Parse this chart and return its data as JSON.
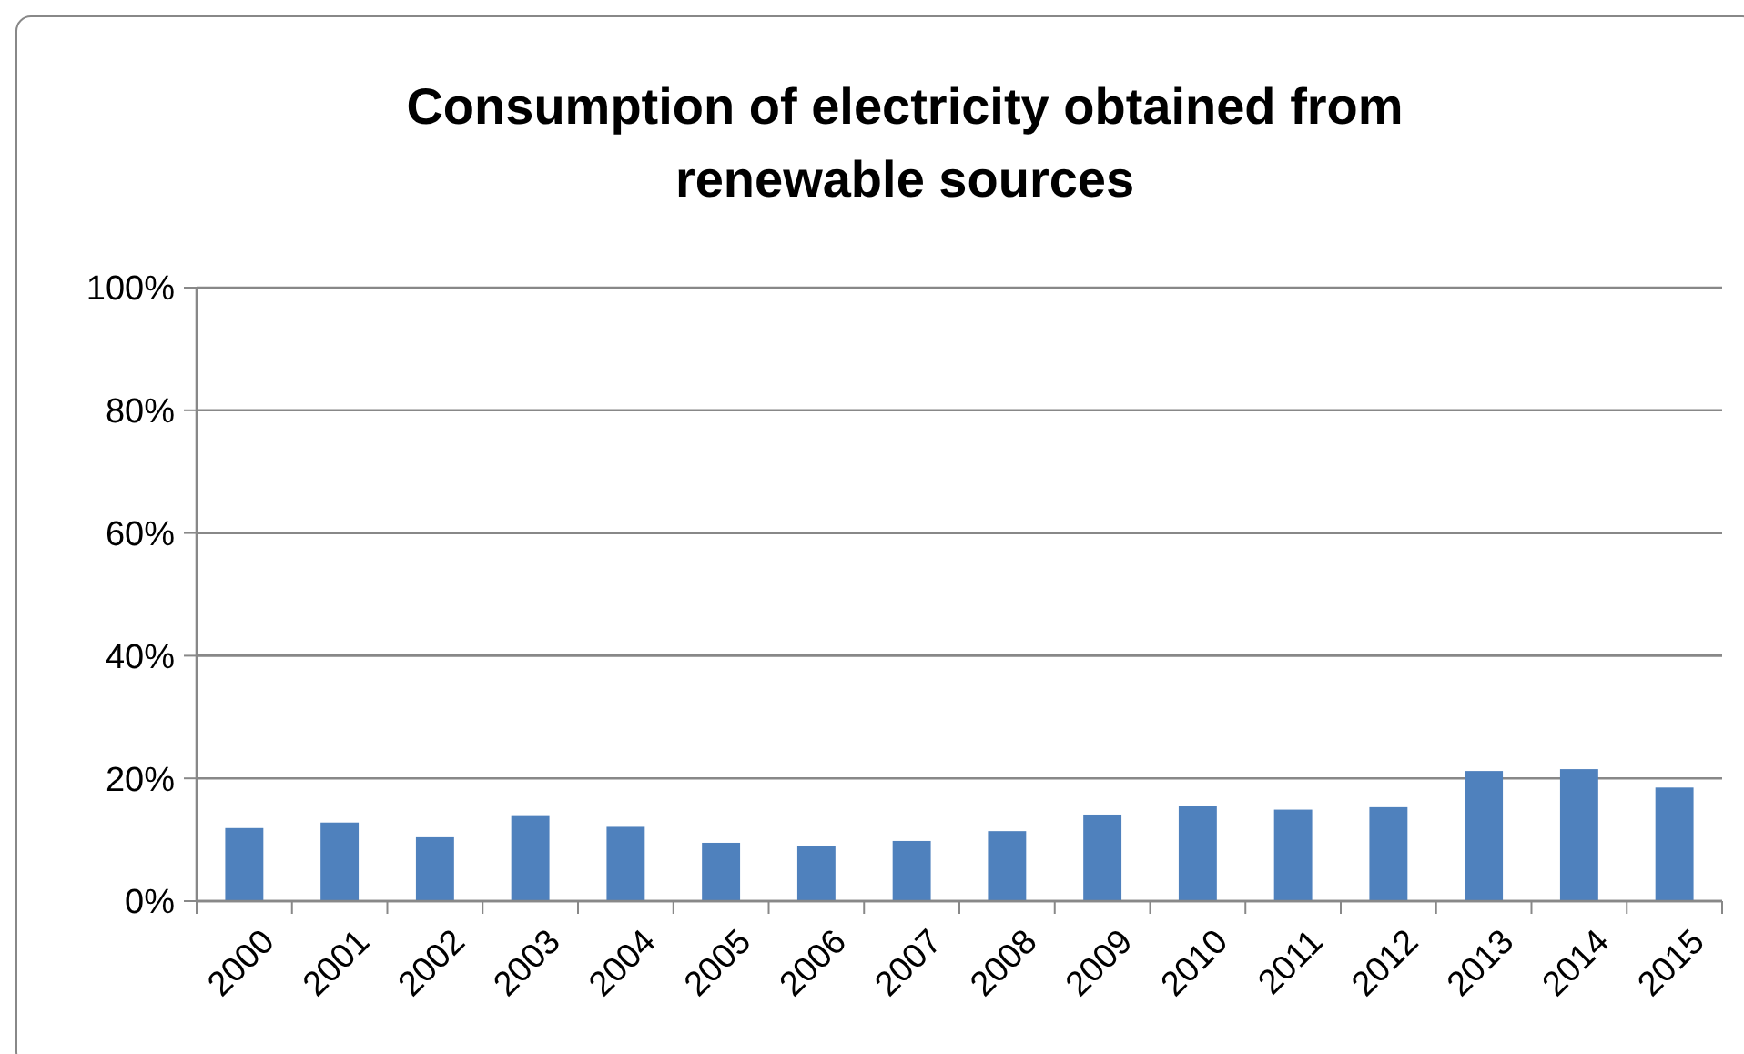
{
  "chart_data": {
    "type": "bar",
    "title": "Consumption of electricity obtained from renewable sources",
    "categories": [
      "2000",
      "2001",
      "2002",
      "2003",
      "2004",
      "2005",
      "2006",
      "2007",
      "2008",
      "2009",
      "2010",
      "2011",
      "2012",
      "2013",
      "2014",
      "2015"
    ],
    "values": [
      11.9,
      12.8,
      10.4,
      14.0,
      12.1,
      9.5,
      9.0,
      9.8,
      11.4,
      14.1,
      15.5,
      14.9,
      15.3,
      21.2,
      21.5,
      18.5
    ],
    "color": "#4f81bd",
    "ylim": [
      0,
      100
    ],
    "yticks": [
      {
        "value": 0,
        "label": "0%"
      },
      {
        "value": 20,
        "label": "20%"
      },
      {
        "value": 40,
        "label": "40%"
      },
      {
        "value": 60,
        "label": "60%"
      },
      {
        "value": 80,
        "label": "80%"
      },
      {
        "value": 100,
        "label": "100%"
      }
    ],
    "grid": "y"
  }
}
